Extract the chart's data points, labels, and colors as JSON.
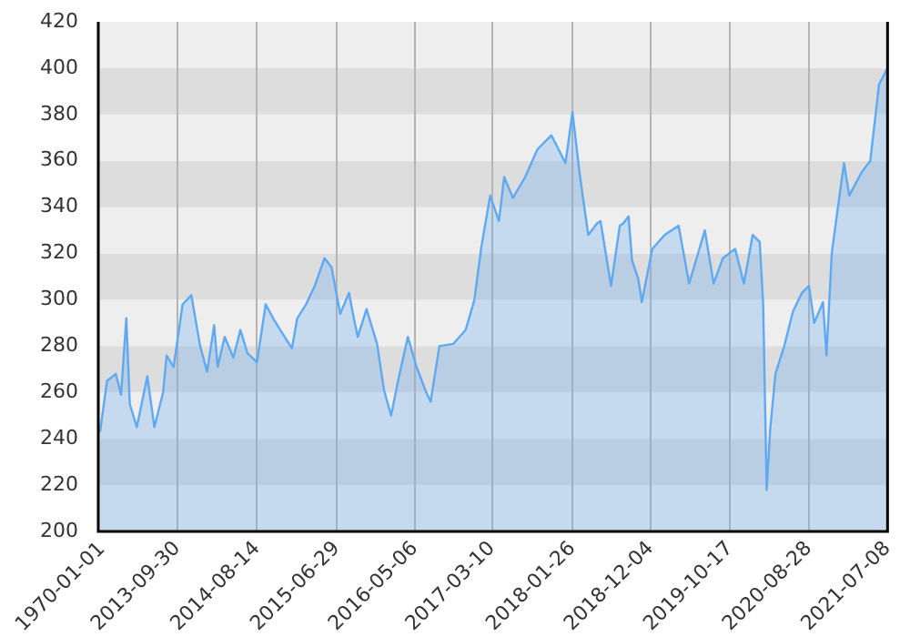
{
  "chart_data": {
    "type": "area",
    "x": [
      "2012-11-25",
      "2012-12-23",
      "2013-01-27",
      "2013-02-17",
      "2013-03-10",
      "2013-03-24",
      "2013-04-21",
      "2013-06-02",
      "2013-06-30",
      "2013-08-04",
      "2013-08-18",
      "2013-09-15",
      "2013-10-21",
      "2013-11-25",
      "2013-12-30",
      "2014-01-27",
      "2014-02-24",
      "2014-03-10",
      "2014-04-07",
      "2014-05-12",
      "2014-06-09",
      "2014-07-07",
      "2014-08-14",
      "2014-09-18",
      "2014-10-23",
      "2015-01-01",
      "2015-01-22",
      "2015-02-26",
      "2015-04-02",
      "2015-05-11",
      "2015-06-08",
      "2015-07-13",
      "2015-08-17",
      "2015-09-07",
      "2015-09-21",
      "2015-10-26",
      "2015-12-07",
      "2016-01-04",
      "2016-02-01",
      "2016-02-29",
      "2016-04-08",
      "2016-05-13",
      "2016-06-17",
      "2016-07-08",
      "2016-08-12",
      "2016-10-07",
      "2016-11-25",
      "2016-12-30",
      "2017-01-27",
      "2017-03-03",
      "2017-04-07",
      "2017-04-28",
      "2017-06-02",
      "2017-07-21",
      "2017-09-08",
      "2017-11-03",
      "2017-12-29",
      "2018-01-26",
      "2018-02-23",
      "2018-03-09",
      "2018-03-30",
      "2018-05-04",
      "2018-05-18",
      "2018-06-29",
      "2018-08-03",
      "2018-08-17",
      "2018-09-07",
      "2018-09-21",
      "2018-10-16",
      "2018-10-30",
      "2018-12-11",
      "2019-01-29",
      "2019-03-26",
      "2019-05-07",
      "2019-07-09",
      "2019-08-13",
      "2019-09-19",
      "2019-11-07",
      "2019-12-12",
      "2020-01-16",
      "2020-02-13",
      "2020-02-27",
      "2020-03-12",
      "2020-03-26",
      "2020-04-16",
      "2020-05-21",
      "2020-06-25",
      "2020-07-31",
      "2020-08-28",
      "2020-09-18",
      "2020-10-23",
      "2020-11-06",
      "2020-11-27",
      "2020-12-18",
      "2021-01-15",
      "2021-02-05",
      "2021-03-26",
      "2021-04-30",
      "2021-06-04",
      "2021-07-08"
    ],
    "series": [
      {
        "color": "#5ea9f2",
        "values": [
          243,
          265,
          268,
          259,
          292,
          255,
          245,
          267,
          245,
          260,
          276,
          271,
          298,
          302,
          280,
          269,
          289,
          271,
          284,
          275,
          287,
          277,
          273,
          298,
          291,
          279,
          292,
          298,
          306,
          318,
          314,
          294,
          303,
          291,
          284,
          296,
          281,
          261,
          250,
          265,
          284,
          271,
          261,
          256,
          280,
          281,
          287,
          300,
          323,
          345,
          334,
          353,
          344,
          353,
          365,
          371,
          359,
          381,
          355,
          344,
          328,
          333,
          334,
          306,
          332,
          333,
          336,
          317,
          309,
          299,
          322,
          328,
          332,
          307,
          330,
          307,
          318,
          322,
          307,
          328,
          325,
          298,
          218,
          244,
          268,
          280,
          295,
          303,
          306,
          290,
          299,
          276,
          320,
          337,
          359,
          345,
          355,
          360,
          393,
          400
        ]
      }
    ],
    "xlim": [
      "2012-11-18",
      "2021-07-08"
    ],
    "annotations": [
      "1970-01-01"
    ],
    "xticks": [
      {
        "value": "2012-11-18",
        "label": null
      },
      "2013-09-30",
      "2014-08-14",
      "2015-06-29",
      "2016-05-06",
      "2017-03-10",
      "2018-01-26",
      "2018-12-04",
      "2019-10-17",
      "2020-08-28",
      "2021-07-08"
    ],
    "ylim": [
      200,
      420
    ],
    "yticks": [
      200,
      220,
      240,
      260,
      280,
      300,
      320,
      340,
      360,
      380,
      400,
      420
    ],
    "grid": true
  }
}
